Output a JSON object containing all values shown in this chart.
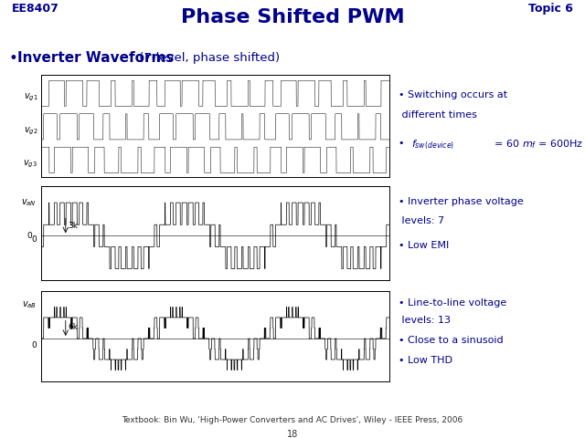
{
  "title": "Phase Shifted PWM",
  "header_left": "EE8407",
  "header_right": "Topic 6",
  "bullet_main": "Inverter Waveforms",
  "bullet_main_suffix": " (7-level, phase shifted)",
  "title_color": "#00008B",
  "header_color": "#00008B",
  "bullet_color": "#00008B",
  "annotation_color": "#00008B",
  "red_line_color": "#CC0000",
  "bg_color": "#FFFFFF",
  "footer": "Textbook: Bin Wu, 'High-Power Converters and AC Drives', Wiley - IEEE Press, 2006",
  "page_number": "18",
  "label_v1": "$v_{g1}$",
  "label_v2": "$v_{g2}$",
  "label_v3": "$v_{g3}$",
  "label_van": "$v_{aN}$",
  "label_vab": "$v_{aB}$",
  "label_3k": "3k",
  "label_6k": "6k",
  "ann1_line1": "Switching occurs at",
  "ann1_line2": " different times",
  "ann2_line1": "Inverter phase voltage",
  "ann2_line2": " levels: 7",
  "ann2_line3": "Low EMI",
  "ann3_line1": "Line-to-line voltage",
  "ann3_line2": " levels: 13",
  "ann3_line3": "Close to a sinusoid",
  "ann3_line4": "Low THD"
}
